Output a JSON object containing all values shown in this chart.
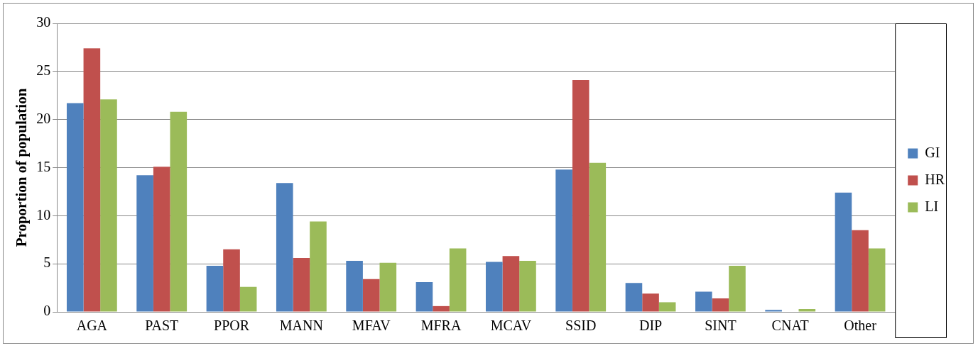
{
  "chart_data": {
    "type": "bar",
    "ylabel": "Proportion of population",
    "categories": [
      "AGA",
      "PAST",
      "PPOR",
      "MANN",
      "MFAV",
      "MFRA",
      "MCAV",
      "SSID",
      "DIP",
      "SINT",
      "CNAT",
      "Other"
    ],
    "series": [
      {
        "name": "GI",
        "color": "#4f81bd",
        "values": [
          21.7,
          14.2,
          4.8,
          13.4,
          5.3,
          3.1,
          5.2,
          14.8,
          3.0,
          2.1,
          0.2,
          12.4
        ]
      },
      {
        "name": "HR",
        "color": "#c0504d",
        "values": [
          27.4,
          15.1,
          6.5,
          5.6,
          3.4,
          0.6,
          5.8,
          24.1,
          1.9,
          1.4,
          0,
          8.5
        ]
      },
      {
        "name": "LI",
        "color": "#9bbb59",
        "values": [
          22.1,
          20.8,
          2.6,
          9.4,
          5.1,
          6.6,
          5.3,
          15.5,
          1.0,
          4.8,
          0.3,
          6.6
        ]
      }
    ],
    "ylim": [
      0,
      30
    ],
    "yticks": [
      0,
      5,
      10,
      15,
      20,
      25,
      30
    ],
    "grid": "y",
    "legend": "right"
  }
}
